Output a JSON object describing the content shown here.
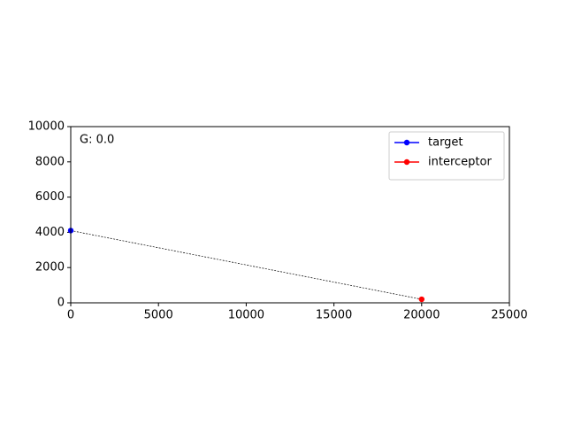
{
  "chart_data": {
    "type": "line",
    "annotation": "G: 0.0",
    "series": [
      {
        "name": "target",
        "color": "#0000ff",
        "x": [
          0
        ],
        "values": [
          4100
        ]
      },
      {
        "name": "interceptor",
        "color": "#ff0000",
        "x": [
          20000
        ],
        "values": [
          200
        ]
      }
    ],
    "xlim": [
      0,
      25000
    ],
    "xticks": [
      0,
      5000,
      10000,
      15000,
      20000,
      25000
    ],
    "ylim": [
      0,
      10000
    ],
    "yticks": [
      0,
      2000,
      4000,
      6000,
      8000,
      10000
    ],
    "grid": false,
    "legend": "upper right"
  }
}
